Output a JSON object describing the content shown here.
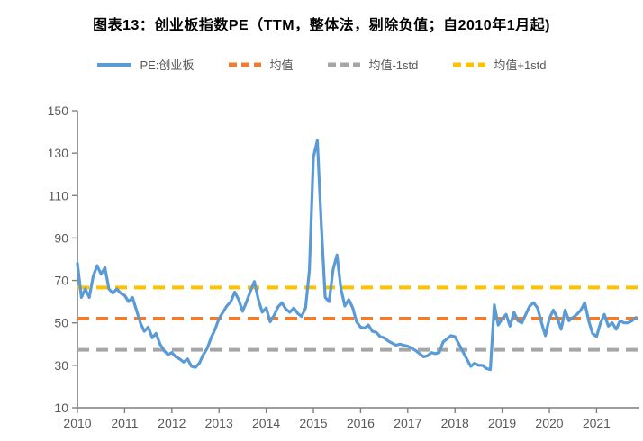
{
  "title": "图表13：创业板指数PE（TTM，整体法，剔除负值；自2010年1月起)",
  "legend": [
    {
      "label": "PE:创业板",
      "color": "#5B9BD5",
      "style": "solid"
    },
    {
      "label": "均值",
      "color": "#ED7D31",
      "style": "dashed"
    },
    {
      "label": "均值-1std",
      "color": "#A6A6A6",
      "style": "dashed"
    },
    {
      "label": "均值+1std",
      "color": "#FFC000",
      "style": "dashed"
    }
  ],
  "chart_data": {
    "type": "line",
    "title": "图表13：创业板指数PE（TTM，整体法，剔除负值；自2010年1月起)",
    "xlabel": "",
    "ylabel": "",
    "ylim": [
      10,
      150
    ],
    "y_ticks": [
      10,
      30,
      50,
      70,
      90,
      110,
      130,
      150
    ],
    "x_tick_labels": [
      "2010",
      "2011",
      "2012",
      "2013",
      "2014",
      "2015",
      "2016",
      "2017",
      "2018",
      "2019",
      "2020",
      "2021"
    ],
    "x_start": "2010-01",
    "x_end": "2021-11",
    "grid": false,
    "legend_position": "top",
    "axis_color": "#7F7F7F",
    "tick_label_color": "#595959",
    "series": [
      {
        "name": "PE:创业板",
        "color": "#5B9BD5",
        "style": "solid",
        "frequency": "monthly",
        "monthly_values": [
          78,
          62,
          66,
          62,
          72,
          77,
          73,
          76,
          66,
          64,
          66,
          64,
          63,
          60,
          62,
          56,
          50,
          46,
          48,
          43,
          45,
          40,
          37,
          35,
          36,
          34,
          33,
          31.5,
          33,
          29.5,
          29,
          31,
          35,
          38,
          43,
          47,
          52,
          55,
          58,
          60,
          64.5,
          61,
          55.5,
          60,
          65,
          69.5,
          61,
          55,
          57,
          50.5,
          53.5,
          57.5,
          59.5,
          56.5,
          55,
          57,
          54.5,
          53,
          57,
          75,
          128,
          136,
          97,
          62,
          60,
          75,
          82,
          66,
          58,
          61,
          57,
          50.5,
          48,
          47.5,
          49,
          46,
          45.5,
          43.5,
          43,
          41.5,
          40.5,
          39.5,
          40,
          39.5,
          39,
          38,
          37,
          35.5,
          34,
          34.5,
          36,
          35.5,
          36,
          41,
          42.5,
          44,
          43.5,
          40,
          36.5,
          33,
          29.5,
          31,
          30,
          30,
          28.5,
          28,
          58.5,
          49,
          52,
          54,
          48.5,
          55,
          51,
          50,
          54,
          58,
          59.5,
          57,
          50,
          44,
          52,
          56,
          52.5,
          47,
          56,
          51,
          52.5,
          54,
          56,
          59.5,
          51,
          45,
          43.5,
          50,
          54,
          48.5,
          50,
          47,
          51,
          50,
          50,
          51,
          52.5
        ]
      },
      {
        "name": "均值",
        "color": "#ED7D31",
        "style": "dashed",
        "value": 52
      },
      {
        "name": "均值-1std",
        "color": "#A6A6A6",
        "style": "dashed",
        "value": 37.3
      },
      {
        "name": "均值+1std",
        "color": "#FFC000",
        "style": "dashed",
        "value": 66.7
      }
    ]
  }
}
